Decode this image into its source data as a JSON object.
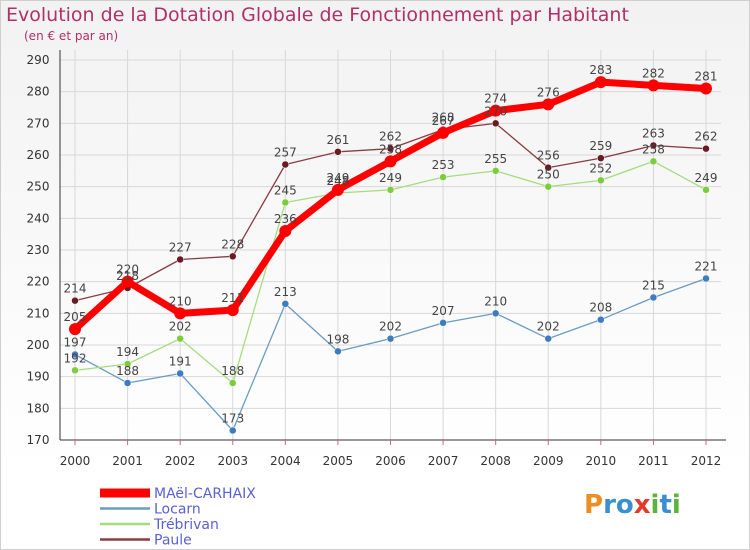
{
  "header": {
    "title": "Evolution de la Dotation Globale de Fonctionnement par Habitant",
    "subtitle": "(en € et par an)"
  },
  "logo": {
    "letters": [
      "P",
      "r",
      "o",
      "x",
      "i",
      "t",
      "i"
    ],
    "colors": [
      "#ee8e22",
      "#3a8fd0",
      "#3a8fd0",
      "#e23a2b",
      "#5db43a",
      "#3a8fd0",
      "#5db43a"
    ],
    "wordmark": "Proxiti"
  },
  "chart_data": {
    "type": "line",
    "title": "Evolution de la Dotation Globale de Fonctionnement par Habitant",
    "subtitle": "(en € et par an)",
    "xlabel": "",
    "ylabel": "",
    "x": [
      2000,
      2001,
      2002,
      2003,
      2004,
      2005,
      2006,
      2007,
      2008,
      2009,
      2010,
      2011,
      2012
    ],
    "ylim": [
      170,
      290
    ],
    "yticks": [
      170,
      180,
      190,
      200,
      210,
      220,
      230,
      240,
      250,
      260,
      270,
      280,
      290
    ],
    "grid": true,
    "legend_position": "bottom-left",
    "series": [
      {
        "name": "MAël-CARHAIX",
        "color": "#ff0000",
        "width": 7,
        "marker_radius": 6,
        "values": [
          205,
          220,
          210,
          211,
          236,
          249,
          258,
          267,
          274,
          276,
          283,
          282,
          281
        ]
      },
      {
        "name": "Locarn",
        "color": "#6a9cc4",
        "width": 1.3,
        "marker_radius": 3.5,
        "marker_color": "#3d7cc0",
        "values": [
          197,
          188,
          191,
          173,
          213,
          198,
          202,
          207,
          210,
          202,
          208,
          215,
          221
        ]
      },
      {
        "name": "Trébrivan",
        "color": "#a6dc7e",
        "width": 1.3,
        "marker_radius": 3.5,
        "marker_color": "#7ccc3e",
        "values": [
          192,
          194,
          202,
          188,
          245,
          248,
          249,
          253,
          255,
          250,
          252,
          258,
          249
        ]
      },
      {
        "name": "Paule",
        "color": "#8a3c44",
        "width": 1.3,
        "marker_radius": 3.5,
        "marker_color": "#6a1a22",
        "values": [
          214,
          218,
          227,
          228,
          257,
          261,
          262,
          268,
          270,
          256,
          259,
          263,
          262
        ]
      }
    ]
  }
}
